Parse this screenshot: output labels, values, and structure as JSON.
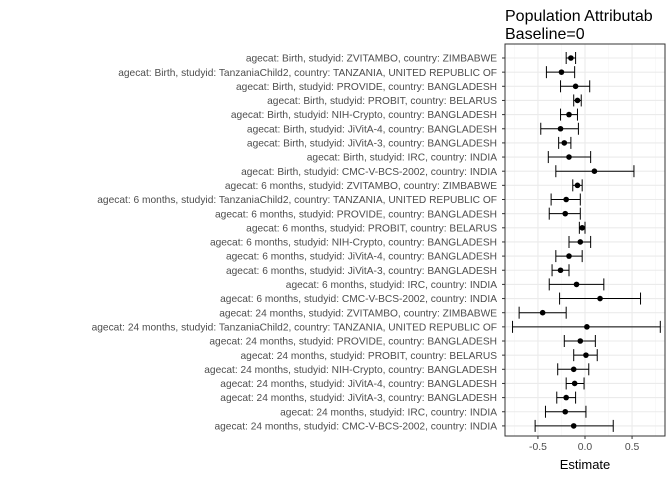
{
  "chart_data": {
    "type": "forest",
    "title": "Population Attributab",
    "subtitle": "Baseline=0",
    "xlabel": "Estimate",
    "ylabel": "",
    "xlim": [
      -0.85,
      0.85
    ],
    "xticks": [
      -0.5,
      0.0,
      0.5
    ],
    "xtick_labels": [
      "-0.5",
      "0.0",
      "0.5"
    ],
    "grid": true,
    "colors": {
      "point": "#000000",
      "grid_major": "#ebebeb",
      "grid_minor": "#f5f5f5",
      "border": "#333333"
    },
    "rows": [
      {
        "label": "agecat: Birth, studyid: ZVITAMBO, country: ZIMBABWE",
        "estimate": -0.15,
        "lower": -0.2,
        "upper": -0.1
      },
      {
        "label": "agecat: Birth, studyid: TanzaniaChild2, country: TANZANIA, UNITED REPUBLIC OF",
        "estimate": -0.25,
        "lower": -0.41,
        "upper": -0.11
      },
      {
        "label": "agecat: Birth, studyid: PROVIDE, country: BANGLADESH",
        "estimate": -0.1,
        "lower": -0.26,
        "upper": 0.05
      },
      {
        "label": "agecat: Birth, studyid: PROBIT, country: BELARUS",
        "estimate": -0.08,
        "lower": -0.12,
        "upper": -0.04
      },
      {
        "label": "agecat: Birth, studyid: NIH-Crypto, country: BANGLADESH",
        "estimate": -0.17,
        "lower": -0.26,
        "upper": -0.08
      },
      {
        "label": "agecat: Birth, studyid: JiVitA-4, country: BANGLADESH",
        "estimate": -0.26,
        "lower": -0.47,
        "upper": -0.07
      },
      {
        "label": "agecat: Birth, studyid: JiVitA-3, country: BANGLADESH",
        "estimate": -0.22,
        "lower": -0.28,
        "upper": -0.15
      },
      {
        "label": "agecat: Birth, studyid: IRC, country: INDIA",
        "estimate": -0.17,
        "lower": -0.39,
        "upper": 0.06
      },
      {
        "label": "agecat: Birth, studyid: CMC-V-BCS-2002, country: INDIA",
        "estimate": 0.1,
        "lower": -0.31,
        "upper": 0.52
      },
      {
        "label": "agecat: 6 months, studyid: ZVITAMBO, country: ZIMBABWE",
        "estimate": -0.08,
        "lower": -0.13,
        "upper": -0.03
      },
      {
        "label": "agecat: 6 months, studyid: TanzaniaChild2, country: TANZANIA, UNITED REPUBLIC OF",
        "estimate": -0.2,
        "lower": -0.36,
        "upper": -0.05
      },
      {
        "label": "agecat: 6 months, studyid: PROVIDE, country: BANGLADESH",
        "estimate": -0.21,
        "lower": -0.38,
        "upper": -0.05
      },
      {
        "label": "agecat: 6 months, studyid: PROBIT, country: BELARUS",
        "estimate": -0.03,
        "lower": -0.06,
        "upper": 0.0
      },
      {
        "label": "agecat: 6 months, studyid: NIH-Crypto, country: BANGLADESH",
        "estimate": -0.05,
        "lower": -0.17,
        "upper": 0.06
      },
      {
        "label": "agecat: 6 months, studyid: JiVitA-4, country: BANGLADESH",
        "estimate": -0.17,
        "lower": -0.31,
        "upper": -0.03
      },
      {
        "label": "agecat: 6 months, studyid: JiVitA-3, country: BANGLADESH",
        "estimate": -0.26,
        "lower": -0.35,
        "upper": -0.17
      },
      {
        "label": "agecat: 6 months, studyid: IRC, country: INDIA",
        "estimate": -0.09,
        "lower": -0.38,
        "upper": 0.2
      },
      {
        "label": "agecat: 6 months, studyid: CMC-V-BCS-2002, country: INDIA",
        "estimate": 0.16,
        "lower": -0.27,
        "upper": 0.59
      },
      {
        "label": "agecat: 24 months, studyid: ZVITAMBO, country: ZIMBABWE",
        "estimate": -0.45,
        "lower": -0.7,
        "upper": -0.2
      },
      {
        "label": "agecat: 24 months, studyid: TanzaniaChild2, country: TANZANIA, UNITED REPUBLIC OF",
        "estimate": 0.02,
        "lower": -0.77,
        "upper": 0.8
      },
      {
        "label": "agecat: 24 months, studyid: PROVIDE, country: BANGLADESH",
        "estimate": -0.05,
        "lower": -0.22,
        "upper": 0.11
      },
      {
        "label": "agecat: 24 months, studyid: PROBIT, country: BELARUS",
        "estimate": 0.01,
        "lower": -0.12,
        "upper": 0.13
      },
      {
        "label": "agecat: 24 months, studyid: NIH-Crypto, country: BANGLADESH",
        "estimate": -0.12,
        "lower": -0.29,
        "upper": 0.04
      },
      {
        "label": "agecat: 24 months, studyid: JiVitA-4, country: BANGLADESH",
        "estimate": -0.11,
        "lower": -0.2,
        "upper": -0.01
      },
      {
        "label": "agecat: 24 months, studyid: JiVitA-3, country: BANGLADESH",
        "estimate": -0.2,
        "lower": -0.3,
        "upper": -0.1
      },
      {
        "label": "agecat: 24 months, studyid: IRC, country: INDIA",
        "estimate": -0.21,
        "lower": -0.42,
        "upper": 0.01
      },
      {
        "label": "agecat: 24 months, studyid: CMC-V-BCS-2002, country: INDIA",
        "estimate": -0.12,
        "lower": -0.53,
        "upper": 0.3
      }
    ]
  }
}
